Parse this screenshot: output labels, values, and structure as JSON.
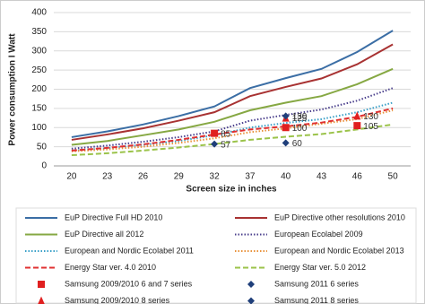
{
  "chart_data": {
    "type": "line",
    "x_label": "Screen size in inches",
    "y_label": "Power consumption I Watt",
    "categories": [
      "20",
      "23",
      "26",
      "29",
      "32",
      "37",
      "40",
      "43",
      "46",
      "50"
    ],
    "ylim": [
      0,
      400
    ],
    "yticks": [
      0,
      50,
      100,
      150,
      200,
      250,
      300,
      350,
      400
    ],
    "grid": true,
    "series": [
      {
        "name": "EuP Directive Full HD 2010",
        "color": "#3b6ea5",
        "style": "solid",
        "values": [
          75,
          90,
          108,
          130,
          155,
          203,
          229,
          253,
          297,
          353
        ]
      },
      {
        "name": "EuP Directive other resolutions 2010",
        "color": "#a83232",
        "style": "solid",
        "values": [
          68,
          82,
          98,
          118,
          140,
          182,
          206,
          228,
          265,
          317
        ]
      },
      {
        "name": "EuP Directive all 2012",
        "color": "#86a843",
        "style": "solid",
        "values": [
          55,
          65,
          80,
          95,
          115,
          145,
          165,
          182,
          213,
          253
        ]
      },
      {
        "name": "European Ecolabel 2009",
        "color": "#4a3f8c",
        "style": "dotted",
        "values": [
          45,
          53,
          63,
          75,
          90,
          118,
          133,
          147,
          170,
          203
        ]
      },
      {
        "name": "European and Nordic Ecolabel 2011",
        "color": "#3aa0c8",
        "style": "dotted",
        "values": [
          40,
          46,
          55,
          65,
          80,
          100,
          112,
          122,
          140,
          165
        ]
      },
      {
        "name": "European and Nordic Ecolabel 2013",
        "color": "#e8913a",
        "style": "dotted",
        "values": [
          38,
          43,
          50,
          60,
          72,
          88,
          98,
          110,
          122,
          145
        ]
      },
      {
        "name": "Energy Star ver. 4.0 2010",
        "color": "#e03030",
        "style": "dashed",
        "values": [
          40,
          47,
          56,
          68,
          82,
          95,
          103,
          113,
          128,
          150
        ]
      },
      {
        "name": "Energy Star ver. 5.0 2012",
        "color": "#9bc34a",
        "style": "dashed",
        "values": [
          28,
          33,
          40,
          48,
          57,
          68,
          76,
          83,
          95,
          108
        ]
      },
      {
        "name": "Samsung 2009/2010 6 and 7 series",
        "color": "#e02020",
        "marker": "square",
        "values": [
          null,
          null,
          null,
          null,
          85,
          null,
          100,
          null,
          105,
          null
        ]
      },
      {
        "name": "Samsung 2011  6  series",
        "color": "#1f3f7a",
        "marker": "diamond",
        "values": [
          null,
          null,
          null,
          null,
          57,
          null,
          60,
          null,
          null,
          null
        ]
      },
      {
        "name": "Samsung 2009/2010 8 series",
        "color": "#e02020",
        "marker": "triangle",
        "values": [
          null,
          null,
          null,
          null,
          null,
          null,
          125,
          null,
          130,
          null
        ]
      },
      {
        "name": "Samsung 2011 8 series",
        "color": "#1f3f7a",
        "marker": "diamond",
        "values": [
          null,
          null,
          null,
          null,
          null,
          null,
          130,
          null,
          null,
          null
        ]
      }
    ]
  }
}
